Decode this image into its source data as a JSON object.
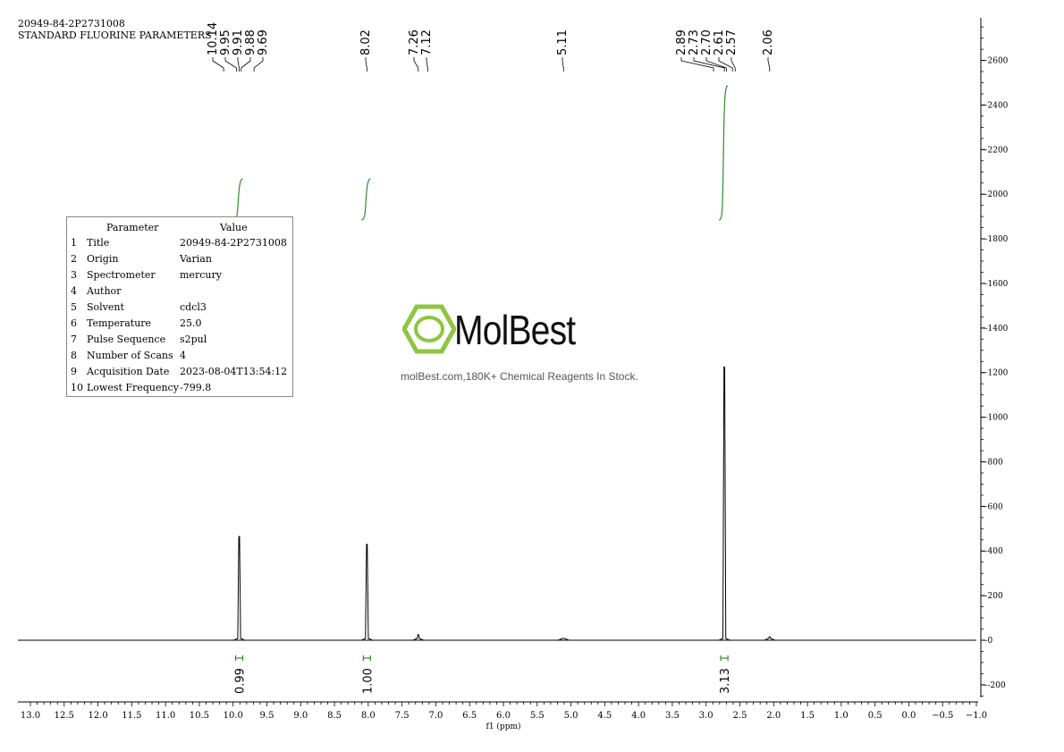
{
  "header": {
    "line1": "20949-84-2P2731008",
    "line2": "STANDARD FLUORINE PARAMETERS"
  },
  "params_table": {
    "col_param": "Parameter",
    "col_value": "Value",
    "rows": [
      {
        "num": "1",
        "name": "Title",
        "value": "20949-84-2P2731008"
      },
      {
        "num": "2",
        "name": "Origin",
        "value": "Varian"
      },
      {
        "num": "3",
        "name": "Spectrometer",
        "value": "mercury"
      },
      {
        "num": "4",
        "name": "Author",
        "value": ""
      },
      {
        "num": "5",
        "name": "Solvent",
        "value": "cdcl3"
      },
      {
        "num": "6",
        "name": "Temperature",
        "value": "25.0"
      },
      {
        "num": "7",
        "name": "Pulse Sequence",
        "value": "s2pul"
      },
      {
        "num": "8",
        "name": "Number of Scans",
        "value": "4"
      },
      {
        "num": "9",
        "name": "Acquisition Date",
        "value": "2023-08-04T13:54:12"
      },
      {
        "num": "10",
        "name": "Lowest Frequency",
        "value": "-799.8"
      }
    ]
  },
  "watermark": {
    "brand": "MolBest",
    "tagline": "molBest.com,180K+ Chemical Reagents In Stock.",
    "color": "#8dc63f"
  },
  "chart_data": {
    "type": "line",
    "xlabel": "f1 (ppm)",
    "x_reversed": true,
    "xlim": [
      13.0,
      -1.0
    ],
    "x_ticks": [
      13.0,
      12.5,
      12.0,
      11.5,
      11.0,
      10.5,
      10.0,
      9.5,
      9.0,
      8.5,
      8.0,
      7.5,
      7.0,
      6.5,
      6.0,
      5.5,
      5.0,
      4.5,
      4.0,
      3.5,
      3.0,
      2.5,
      2.0,
      1.5,
      1.0,
      0.5,
      0.0,
      -0.5,
      -1.0
    ],
    "ylim": [
      -250,
      2800
    ],
    "y_ticks": [
      -200,
      0,
      200,
      400,
      600,
      800,
      1000,
      1200,
      1400,
      1600,
      1800,
      2000,
      2200,
      2400,
      2600
    ],
    "peaks": [
      {
        "ppm": 9.91,
        "height": 465
      },
      {
        "ppm": 8.02,
        "height": 430
      },
      {
        "ppm": 7.26,
        "height": 25
      },
      {
        "ppm": 5.11,
        "height": 8
      },
      {
        "ppm": 2.73,
        "height": 1225
      },
      {
        "ppm": 2.06,
        "height": 15
      }
    ],
    "peak_labels": [
      {
        "ppm": 10.14,
        "label": "10.14"
      },
      {
        "ppm": 9.95,
        "label": "9.95"
      },
      {
        "ppm": 9.91,
        "label": "9.91"
      },
      {
        "ppm": 9.88,
        "label": "9.88"
      },
      {
        "ppm": 9.69,
        "label": "9.69"
      },
      {
        "ppm": 8.02,
        "label": "8.02"
      },
      {
        "ppm": 7.26,
        "label": "7.26"
      },
      {
        "ppm": 7.12,
        "label": "7.12"
      },
      {
        "ppm": 5.11,
        "label": "5.11"
      },
      {
        "ppm": 2.89,
        "label": "2.89"
      },
      {
        "ppm": 2.73,
        "label": "2.73"
      },
      {
        "ppm": 2.7,
        "label": "2.70"
      },
      {
        "ppm": 2.61,
        "label": "2.61"
      },
      {
        "ppm": 2.57,
        "label": "2.57"
      },
      {
        "ppm": 2.06,
        "label": "2.06"
      }
    ],
    "integrals": [
      {
        "ppm": 9.91,
        "value": "0.99"
      },
      {
        "ppm": 8.02,
        "value": "1.00"
      },
      {
        "ppm": 2.73,
        "value": "3.13"
      }
    ],
    "colors": {
      "spectrum": "#000000",
      "integral": "#2e8b2e"
    }
  }
}
